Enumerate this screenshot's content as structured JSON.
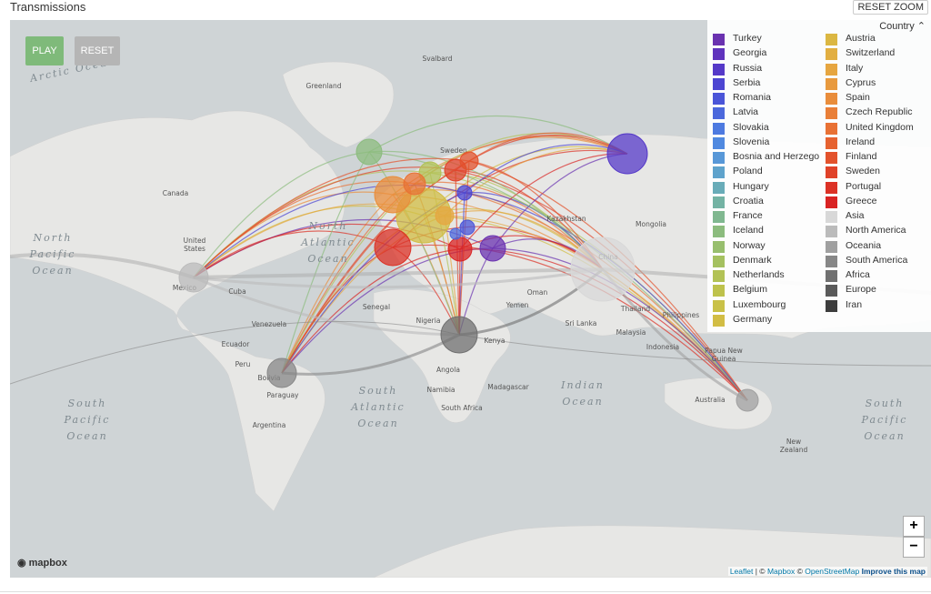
{
  "header": {
    "title": "Transmissions",
    "reset_zoom": "RESET ZOOM"
  },
  "controls": {
    "play": "PLAY",
    "reset": "RESET"
  },
  "legend": {
    "title": "Country",
    "items": [
      {
        "name": "Turkey",
        "color": "#6a32b0"
      },
      {
        "name": "Georgia",
        "color": "#5f33bd"
      },
      {
        "name": "Russia",
        "color": "#5539c8"
      },
      {
        "name": "Serbia",
        "color": "#4c45d2"
      },
      {
        "name": "Romania",
        "color": "#4a55d8"
      },
      {
        "name": "Latvia",
        "color": "#4b68dc"
      },
      {
        "name": "Slovakia",
        "color": "#4d7ae0"
      },
      {
        "name": "Slovenia",
        "color": "#5089e0"
      },
      {
        "name": "Bosnia and Herzego",
        "color": "#5898d8"
      },
      {
        "name": "Poland",
        "color": "#5fa3cc"
      },
      {
        "name": "Hungary",
        "color": "#69acb8"
      },
      {
        "name": "Croatia",
        "color": "#74b3a4"
      },
      {
        "name": "France",
        "color": "#80b890"
      },
      {
        "name": "Iceland",
        "color": "#8cbc7e"
      },
      {
        "name": "Norway",
        "color": "#98bf6e"
      },
      {
        "name": "Denmark",
        "color": "#a5c160"
      },
      {
        "name": "Netherlands",
        "color": "#b2c255"
      },
      {
        "name": "Belgium",
        "color": "#bec24c"
      },
      {
        "name": "Luxembourg",
        "color": "#c9c147"
      },
      {
        "name": "Germany",
        "color": "#d2bd44"
      },
      {
        "name": "Austria",
        "color": "#dbb742"
      },
      {
        "name": "Switzerland",
        "color": "#e2af41"
      },
      {
        "name": "Italy",
        "color": "#e6a640"
      },
      {
        "name": "Cyprus",
        "color": "#e89a3e"
      },
      {
        "name": "Spain",
        "color": "#e98d3b"
      },
      {
        "name": "Czech Republic",
        "color": "#e97f38"
      },
      {
        "name": "United Kingdom",
        "color": "#e87134"
      },
      {
        "name": "Ireland",
        "color": "#e66230"
      },
      {
        "name": "Finland",
        "color": "#e3522c"
      },
      {
        "name": "Sweden",
        "color": "#e04229"
      },
      {
        "name": "Portugal",
        "color": "#dc3226"
      },
      {
        "name": "Greece",
        "color": "#d92323"
      },
      {
        "name": "Asia",
        "color": "#d8d8d8"
      },
      {
        "name": "North America",
        "color": "#bbbbbb"
      },
      {
        "name": "Oceania",
        "color": "#a0a0a0"
      },
      {
        "name": "South America",
        "color": "#878787"
      },
      {
        "name": "Africa",
        "color": "#707070"
      },
      {
        "name": "Europe",
        "color": "#5a5a5a"
      },
      {
        "name": "Iran",
        "color": "#3d3d3d"
      }
    ]
  },
  "map_labels": [
    {
      "lines": [
        "Arctic Ocean"
      ]
    },
    {
      "lines": [
        "Svalbard"
      ]
    },
    {
      "lines": [
        "Greenland"
      ]
    },
    {
      "lines": [
        "Canada"
      ]
    },
    {
      "lines": [
        "United",
        "States"
      ]
    },
    {
      "lines": [
        "North",
        "Pacific",
        "Ocean"
      ]
    },
    {
      "lines": [
        "North",
        "Atlantic",
        "Ocean"
      ]
    },
    {
      "lines": [
        "Mexico"
      ]
    },
    {
      "lines": [
        "Cuba"
      ]
    },
    {
      "lines": [
        "Venezuela"
      ]
    },
    {
      "lines": [
        "Ecuador"
      ]
    },
    {
      "lines": [
        "Peru"
      ]
    },
    {
      "lines": [
        "Bolivia"
      ]
    },
    {
      "lines": [
        "Paraguay"
      ]
    },
    {
      "lines": [
        "Argentina"
      ]
    },
    {
      "lines": [
        "South",
        "Pacific",
        "Ocean"
      ]
    },
    {
      "lines": [
        "South",
        "Atlantic",
        "Ocean"
      ]
    },
    {
      "lines": [
        "Indian",
        "Ocean"
      ]
    },
    {
      "lines": [
        "South",
        "Pacific",
        "Ocean"
      ]
    },
    {
      "lines": [
        "Senegal"
      ]
    },
    {
      "lines": [
        "Nigeria"
      ]
    },
    {
      "lines": [
        "Kenya"
      ]
    },
    {
      "lines": [
        "Angola"
      ]
    },
    {
      "lines": [
        "Namibia"
      ]
    },
    {
      "lines": [
        "South Africa"
      ]
    },
    {
      "lines": [
        "Madagascar"
      ]
    },
    {
      "lines": [
        "Oman"
      ]
    },
    {
      "lines": [
        "Yemen"
      ]
    },
    {
      "lines": [
        "Sri Lanka"
      ]
    },
    {
      "lines": [
        "Thailand"
      ]
    },
    {
      "lines": [
        "Philippines"
      ]
    },
    {
      "lines": [
        "Malaysia"
      ]
    },
    {
      "lines": [
        "Indonesia"
      ]
    },
    {
      "lines": [
        "Papua New",
        "Guinea"
      ]
    },
    {
      "lines": [
        "Australia"
      ]
    },
    {
      "lines": [
        "New",
        "Zealand"
      ]
    },
    {
      "lines": [
        "China"
      ]
    },
    {
      "lines": [
        "Mongolia"
      ]
    },
    {
      "lines": [
        "Kazakhstan"
      ]
    },
    {
      "lines": [
        "Sweden"
      ]
    }
  ],
  "zoom": {
    "in": "+",
    "out": "−"
  },
  "attribution": {
    "parts": [
      "Leaflet",
      "| ©",
      "Mapbox",
      "©",
      "OpenStreetMap",
      "Improve this map"
    ],
    "logo": "mapbox"
  }
}
